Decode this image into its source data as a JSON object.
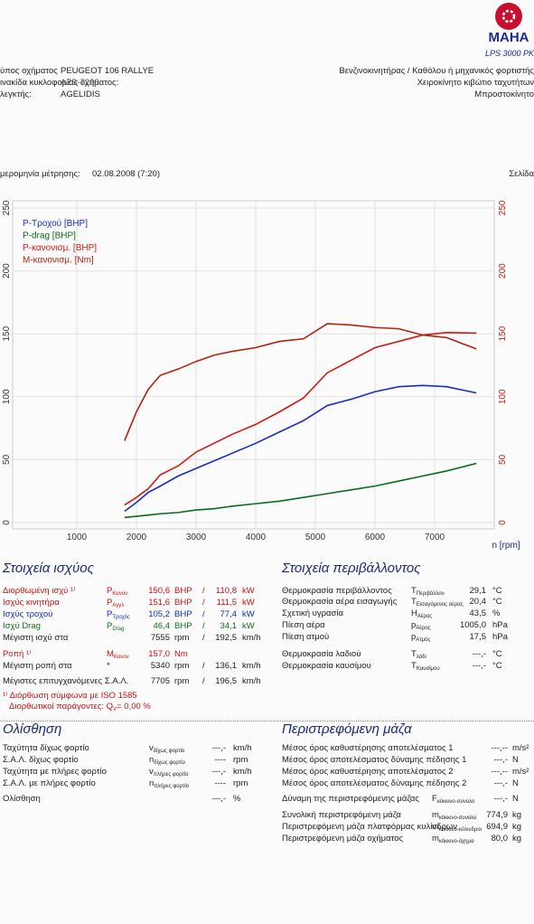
{
  "header": {
    "logo": "MAHA",
    "model": "LPS 3000 PK",
    "vehicle_type_label": "ύπος οχήματος",
    "vehicle_type": "PEUGEOT 106 RALLYE",
    "plate_label": "ινακίδα κυκλοφορίας οχήματος:",
    "plate": "ΑΖΒ-7298",
    "inspector_label": "λεγκτής:",
    "inspector": "AGELIDIS",
    "engine": "Βενζινοκινητήρας / Καθόλου ή μηχανικός φορτιστής",
    "gearbox": "Χειροκίνητο κιβώτιο ταχυτήτων",
    "drive": "Μπροστοκίνητο",
    "date_label": "μερομηνία μέτρησης:",
    "date": "02.08.2008 (7:20)",
    "page": "Σελίδα"
  },
  "chart_data": {
    "type": "line",
    "x_label": "n [rpm]",
    "grid": true,
    "legend": "upper left",
    "x": [
      1800,
      2000,
      2200,
      2400,
      2700,
      3000,
      3300,
      3600,
      4000,
      4400,
      4800,
      5200,
      5600,
      6000,
      6400,
      6800,
      7200,
      7700
    ],
    "xlim": [
      0,
      8000
    ],
    "xticks": [
      1000,
      2000,
      3000,
      4000,
      5000,
      6000,
      7000
    ],
    "ylim": [
      0,
      250
    ],
    "yticks": [
      0,
      50,
      100,
      150,
      200,
      250
    ],
    "y2lim": [
      0,
      250
    ],
    "y2ticks": [
      0,
      50,
      100,
      150,
      200,
      250
    ],
    "y2_tick_color": "#c81e0a",
    "series": [
      {
        "name": "P-Τροχού [BHP]",
        "color": "#1a2cc8",
        "values": [
          9,
          16,
          24,
          29,
          37,
          43,
          49,
          55,
          63,
          72,
          81,
          93,
          98,
          104,
          108,
          109,
          108,
          103
        ]
      },
      {
        "name": "P-drag [BHP]",
        "color": "#0c6a1c",
        "values": [
          4,
          5,
          6,
          7,
          8,
          10,
          11,
          13,
          15,
          17,
          20,
          23,
          26,
          29,
          33,
          37,
          41,
          47
        ]
      },
      {
        "name": "P-κανονισμ. [BHP]",
        "color": "#d21a12",
        "values": [
          14,
          20,
          27,
          38,
          45,
          56,
          63,
          70,
          78,
          88,
          99,
          119,
          129,
          139,
          144,
          149,
          151,
          150.6
        ]
      },
      {
        "name": "M-κανονισμ. [Nm]",
        "color": "#b8200e",
        "axis": "y2",
        "values": [
          65,
          88,
          106,
          117,
          122,
          128,
          133,
          136,
          139,
          144,
          146,
          158,
          157,
          155,
          154,
          149,
          147,
          138
        ]
      }
    ]
  },
  "power": {
    "title": "Στοιχεία ισχύος",
    "rows": [
      {
        "label": "Διορθωμένη ισχύ ¹⁾",
        "sym": "P",
        "sub": "Κανον",
        "v1": "150,6",
        "u1": "BHP",
        "sep": "/",
        "v2": "110,8",
        "u2": "kW",
        "color": "#d01010"
      },
      {
        "label": "Ισχύς κινητήρα",
        "sym": "P",
        "sub": "Αγγλ",
        "v1": "151,6",
        "u1": "BHP",
        "sep": "/",
        "v2": "111,5",
        "u2": "kW",
        "color": "#d01010"
      },
      {
        "label": "Ισχύς τροχού",
        "sym": "P",
        "sub": "Τροχός",
        "v1": "105,2",
        "u1": "BHP",
        "sep": "/",
        "v2": "77,4",
        "u2": "kW",
        "color": "#1030c0"
      },
      {
        "label": "Ισχύ Drag",
        "sym": "P",
        "sub": "Drag",
        "v1": "46,4",
        "u1": "BHP",
        "sep": "/",
        "v2": "34,1",
        "u2": "kW",
        "color": "#107018"
      },
      {
        "label": "Μέγιστη ισχύ στα",
        "v1": "7555",
        "u1": "rpm",
        "sep": "/",
        "v2": "192,5",
        "u2": "km/h"
      },
      {
        "label": "Ροπή ¹⁾",
        "sym": "M",
        "sub": "Κανον",
        "v1": "157,0",
        "u1": "Nm",
        "color": "#d01010"
      },
      {
        "label": "Μέγιστη ροπή στα",
        "sym": "*",
        "v1": "5340",
        "u1": "rpm",
        "sep": "/",
        "v2": "136,1",
        "u2": "km/h"
      },
      {
        "label": "Μέγιστες επιτυγχανόμενες Σ.Α.Λ.",
        "v1": "7705",
        "u1": "rpm",
        "sep": "/",
        "v2": "196,5",
        "u2": "km/h"
      }
    ],
    "note": "¹⁾ Διόρθωση σύμφωνα με  ISO 1585",
    "factors_label": "Διορθωτικοί παράγοντες: Q",
    "factors_sub": "V",
    "factors_value": "=   0,00 %"
  },
  "environment": {
    "title": "Στοιχεία περιβάλλοντος",
    "rows": [
      {
        "label": "Θερμοκρασία περιβάλλοντος",
        "sym": "T",
        "sub": "Περιβάλλον",
        "value": "29,1",
        "unit": "°C"
      },
      {
        "label": "Θερμοκρασία αέρα εισαγωγής",
        "sym": "T",
        "sub": "Εισαγόμενος αέρας",
        "value": "20,4",
        "unit": "°C"
      },
      {
        "label": "Σχετική υγρασία",
        "sym": "H",
        "sub": "Αέρος",
        "value": "43,5",
        "unit": "%"
      },
      {
        "label": "Πίεση αέρα",
        "sym": "p",
        "sub": "Αέρος",
        "value": "1005,0",
        "unit": "hPa"
      },
      {
        "label": "Πίεση ατμού",
        "sym": "p",
        "sub": "Ατμός",
        "value": "17,5",
        "unit": "hPa"
      },
      {
        "label": "Θερμοκρασία λαδιού",
        "sym": "T",
        "sub": "λάδι",
        "value": "---,-",
        "unit": "°C"
      },
      {
        "label": "Θερμοκρασία καυσίμου",
        "sym": "T",
        "sub": "Καυσίμου",
        "value": "---,-",
        "unit": "°C"
      }
    ]
  },
  "slip": {
    "title": "Ολίσθηση",
    "rows": [
      {
        "label": "Ταχύτητα δίχως φορτίο",
        "sym": "v",
        "sub": "δίχως φορτίο",
        "value": "---,-",
        "unit": "km/h"
      },
      {
        "label": "Σ.Α.Λ. δίχως φορτίο",
        "sym": "n",
        "sub": "δίχως φορτίο",
        "value": "----",
        "unit": "rpm"
      },
      {
        "label": "Ταχύτητα με πλήρες φορτίο",
        "sym": "v",
        "sub": "πλήρες φορτίο",
        "value": "---,-",
        "unit": "km/h"
      },
      {
        "label": "Σ.Α.Λ. με πλήρες φορτίο",
        "sym": "n",
        "sub": "πλήρες φορτίο",
        "value": "----",
        "unit": "rpm"
      },
      {
        "label": "Ολίσθηση",
        "value": "---,-",
        "unit": "%"
      }
    ]
  },
  "mass": {
    "title": "Περιστρεφόμενη μάζα",
    "rows": [
      {
        "label": "Μέσος όρος καθυστέρησης αποτελέσματος 1",
        "value": "---,--",
        "unit": "m/s²"
      },
      {
        "label": "Μέσος όρος αποτελέσματος δύναμης πέδησης 1",
        "value": "---,-",
        "unit": "N"
      },
      {
        "label": "Μέσος όρος καθυστέρησης αποτελέσματος 2",
        "value": "---,--",
        "unit": "m/s²"
      },
      {
        "label": "Μέσος όρος αποτελέσματος δύναμης πέδησης 2",
        "value": "---,-",
        "unit": "N"
      },
      {
        "label": "Δύναμη της περιστρεφόμενης μάζας",
        "sym": "F",
        "sub": "κόκκινο-συνολο",
        "value": "---,-",
        "unit": "N"
      },
      {
        "label": "Συνολική περιστρεφόμενη μάζα",
        "sym": "m",
        "sub": "κόκκινο-συνολο",
        "value": "774,9",
        "unit": "kg"
      },
      {
        "label": "Περιστρεφόμενη μάζα πλατφόρμας κυλίνδρων",
        "sym": "m",
        "sub": "κόκκινο-κύλινδροι",
        "value": "694,9",
        "unit": "kg"
      },
      {
        "label": "Περιστρεφόμενη μάζα οχήματος",
        "sym": "m",
        "sub": "κόκκινο-όχημα",
        "value": "80,0",
        "unit": "kg"
      }
    ]
  }
}
